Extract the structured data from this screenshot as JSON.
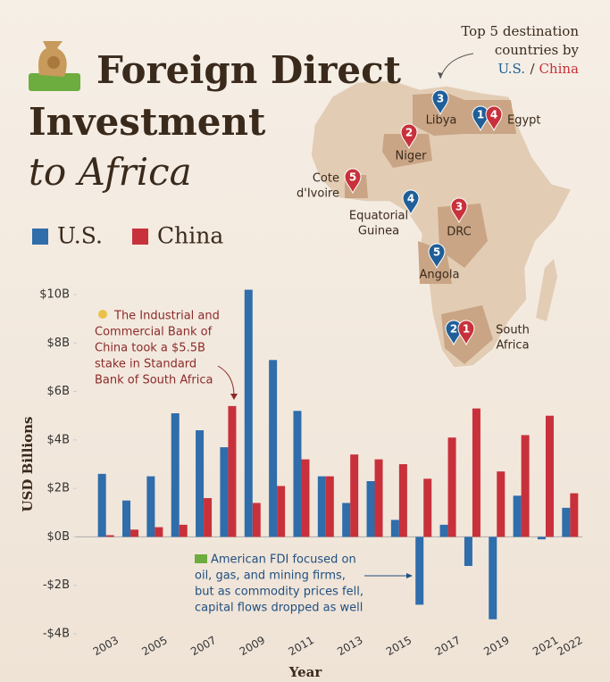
{
  "chart_data": {
    "type": "bar",
    "title_lines": [
      "Foreign Direct",
      "Investment",
      "to Africa"
    ],
    "y_label": "USD Billions",
    "x_label": "Year",
    "categories": [
      "2003",
      null,
      "2005",
      null,
      "2007",
      null,
      "2009",
      null,
      "2011",
      null,
      "2013",
      null,
      "2015",
      null,
      "2017",
      null,
      "2019",
      null,
      "2021",
      "2022"
    ],
    "series": [
      {
        "name": "U.S.",
        "color": "#2f6dab",
        "values": [
          2.6,
          1.5,
          2.5,
          5.1,
          4.4,
          3.7,
          10.2,
          7.3,
          5.2,
          2.5,
          1.4,
          2.3,
          0.7,
          -2.8,
          0.5,
          -1.2,
          -3.4,
          1.7,
          -0.1,
          1.2
        ]
      },
      {
        "name": "China",
        "color": "#c8313b",
        "values": [
          0.07,
          0.3,
          0.4,
          0.5,
          1.6,
          5.4,
          1.4,
          2.1,
          3.2,
          2.5,
          3.4,
          3.2,
          3.0,
          2.4,
          4.1,
          5.3,
          2.7,
          4.2,
          5.0,
          1.8
        ]
      }
    ],
    "ylim": [
      -4,
      10
    ],
    "yticks": [
      {
        "value": -4,
        "label": "-$4B"
      },
      {
        "value": -2,
        "label": "-$2B"
      },
      {
        "value": 0,
        "label": "$0B"
      },
      {
        "value": 2,
        "label": "$2B"
      },
      {
        "value": 4,
        "label": "$4B"
      },
      {
        "value": 6,
        "label": "$6B"
      },
      {
        "value": 8,
        "label": "$8B"
      },
      {
        "value": 10,
        "label": "$10B"
      }
    ],
    "annotations": [
      {
        "lines": [
          "The Industrial and",
          "Commercial Bank of",
          "China took a $5.5B",
          "stake in Standard",
          "Bank of South Africa"
        ],
        "color": "#8c2a2a"
      },
      {
        "lines": [
          "American FDI focused on",
          "oil, gas, and mining firms,",
          "but as commodity prices fell,",
          "capital flows dropped as well"
        ],
        "color": "#1f4f80"
      }
    ]
  },
  "map": {
    "heading_lines": [
      "Top 5 destination",
      "countries by"
    ],
    "heading_us": "U.S.",
    "heading_separator": "/",
    "heading_china": "China",
    "labels": [
      [
        "Libya"
      ],
      [
        "Egypt"
      ],
      [
        "Niger"
      ],
      [
        "Cote",
        "d'Ivoire"
      ],
      [
        "Equatorial",
        "Guinea"
      ],
      [
        "DRC"
      ],
      [
        "Angola"
      ],
      [
        "South",
        "Africa"
      ]
    ],
    "pins": [
      {
        "number": 3,
        "color": "#1f5f99"
      },
      {
        "number": 1,
        "color": "#1f5f99"
      },
      {
        "number": 4,
        "color": "#c8313b"
      },
      {
        "number": 2,
        "color": "#c8313b"
      },
      {
        "number": 5,
        "color": "#c8313b"
      },
      {
        "number": 4,
        "color": "#1f5f99"
      },
      {
        "number": 3,
        "color": "#c8313b"
      },
      {
        "number": 5,
        "color": "#1f5f99"
      },
      {
        "number": 2,
        "color": "#1f5f99"
      },
      {
        "number": 1,
        "color": "#c8313b"
      }
    ]
  }
}
